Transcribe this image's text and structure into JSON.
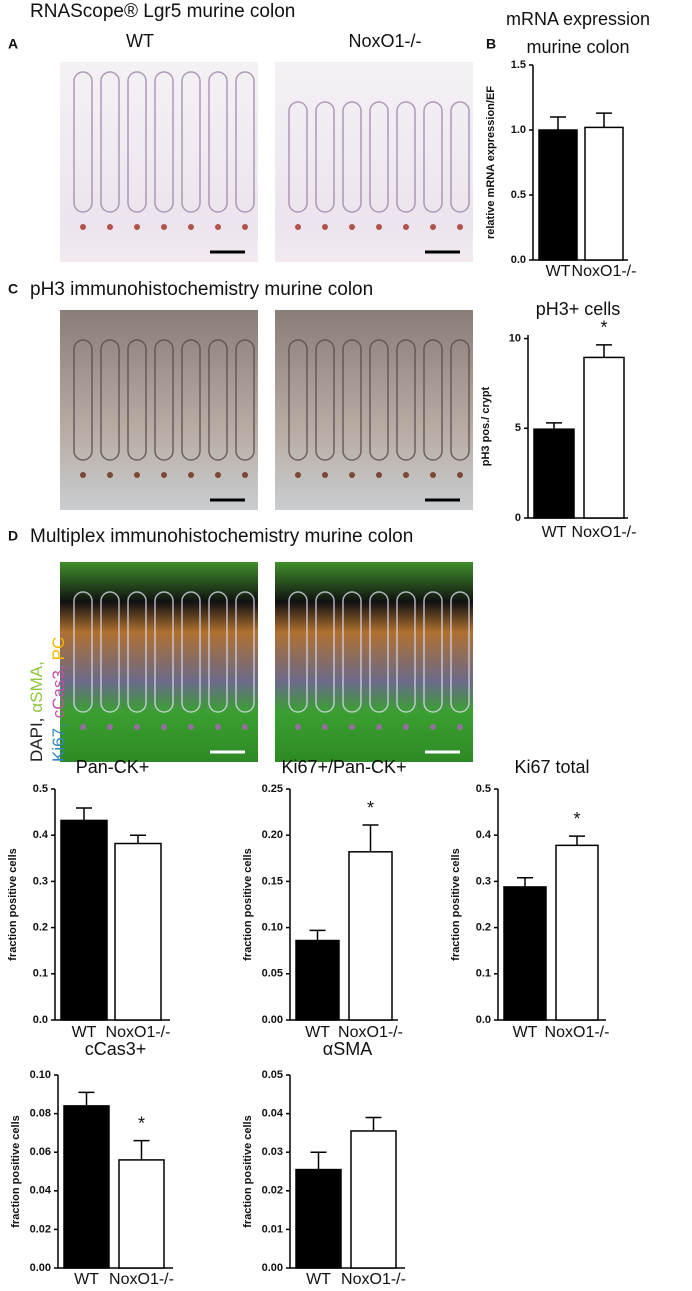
{
  "figure": {
    "panel_a": {
      "letter": "A",
      "title": "RNAScope® Lgr5 murine colon",
      "image_labels": [
        "WT",
        "NoxO1-/-"
      ]
    },
    "panel_b": {
      "letter": "B"
    },
    "panel_c": {
      "letter": "C",
      "title": "pH3 immunohistochemistry murine colon"
    },
    "panel_d": {
      "letter": "D",
      "title": "Multiplex immunohistochemistry murine colon",
      "stain_label": {
        "lines": [
          [
            {
              "text": "DAPI,",
              "color": "#222222"
            },
            {
              "text": "αSMA,",
              "color": "#8cc63f"
            }
          ],
          [
            {
              "text": "Ki67,",
              "color": "#2e86c1"
            },
            {
              "text": "cCas3,",
              "color": "#c050a0"
            },
            {
              "text": "PC",
              "color": "#f5b800"
            }
          ]
        ]
      }
    }
  },
  "chart_data": [
    {
      "type": "bar",
      "title": "mRNA expression",
      "subtitle": "murine colon",
      "ylabel": "relative mRNA expression/EF",
      "categories": [
        "WT",
        "NoxO1-/-"
      ],
      "values": [
        1.0,
        1.02
      ],
      "errors": [
        0.1,
        0.11
      ],
      "colors": [
        "#000000",
        "#ffffff"
      ],
      "ylim": [
        0,
        1.5
      ],
      "yticks": [
        {
          "value": 0,
          "label": "0.0"
        },
        {
          "value": 0.5,
          "label": "0.5"
        },
        {
          "value": 1,
          "label": "1.0"
        },
        {
          "value": 1.5,
          "label": "1.5"
        }
      ]
    },
    {
      "type": "bar",
      "title": "pH3+ cells",
      "ylabel": "pH3 pos./ crypt",
      "categories": [
        "WT",
        "NoxO1-/-"
      ],
      "values": [
        4.95,
        8.95
      ],
      "errors": [
        0.35,
        0.7
      ],
      "colors": [
        "#000000",
        "#ffffff"
      ],
      "ylim": [
        0,
        10.2
      ],
      "yticks": [
        0,
        5,
        10
      ],
      "annotations": [
        {
          "at": 1,
          "text": "*"
        }
      ]
    },
    {
      "type": "bar",
      "title": "Pan-CK+",
      "ylabel": "fraction positive cells",
      "categories": [
        "WT",
        "NoxO1-/-"
      ],
      "values": [
        0.432,
        0.382
      ],
      "errors": [
        0.027,
        0.018
      ],
      "colors": [
        "#000000",
        "#ffffff"
      ],
      "ylim": [
        0,
        0.5
      ],
      "yticks": [
        {
          "value": 0,
          "label": "0.0"
        },
        0.1,
        0.2,
        0.3,
        0.4,
        0.5
      ]
    },
    {
      "type": "bar",
      "title": "Ki67+/Pan-CK+",
      "ylabel": "fraction positive cells",
      "categories": [
        "WT",
        "NoxO1-/-"
      ],
      "values": [
        0.086,
        0.182
      ],
      "errors": [
        0.011,
        0.029
      ],
      "colors": [
        "#000000",
        "#ffffff"
      ],
      "ylim": [
        0,
        0.25
      ],
      "yticks": [
        {
          "value": 0,
          "label": "0.00"
        },
        0.05,
        {
          "value": 0.1,
          "label": "0.10"
        },
        0.15,
        {
          "value": 0.2,
          "label": "0.20"
        },
        0.25
      ],
      "annotations": [
        {
          "at": 1,
          "text": "*"
        }
      ]
    },
    {
      "type": "bar",
      "title": "Ki67 total",
      "ylabel": "fraction positive cells",
      "categories": [
        "WT",
        "NoxO1-/-"
      ],
      "values": [
        0.288,
        0.378
      ],
      "errors": [
        0.02,
        0.02
      ],
      "colors": [
        "#000000",
        "#ffffff"
      ],
      "ylim": [
        0,
        0.5
      ],
      "yticks": [
        {
          "value": 0,
          "label": "0.0"
        },
        0.1,
        0.2,
        0.3,
        0.4,
        0.5
      ],
      "annotations": [
        {
          "at": 1,
          "text": "*"
        }
      ]
    },
    {
      "type": "bar",
      "title": "cCas3+",
      "ylabel": "fraction positive cells",
      "categories": [
        "WT",
        "NoxO1-/-"
      ],
      "values": [
        0.084,
        0.056
      ],
      "errors": [
        0.007,
        0.01
      ],
      "colors": [
        "#000000",
        "#ffffff"
      ],
      "ylim": [
        0,
        0.1
      ],
      "yticks": [
        {
          "value": 0,
          "label": "0.00"
        },
        0.02,
        0.04,
        0.06,
        0.08,
        {
          "value": 0.1,
          "label": "0.10"
        }
      ],
      "annotations": [
        {
          "at": 1,
          "text": "*"
        }
      ]
    },
    {
      "type": "bar",
      "title": "αSMA",
      "ylabel": "fraction positive cells",
      "categories": [
        "WT",
        "NoxO1-/-"
      ],
      "values": [
        0.0255,
        0.0355
      ],
      "errors": [
        0.0045,
        0.0035
      ],
      "colors": [
        "#000000",
        "#ffffff"
      ],
      "ylim": [
        0,
        0.05
      ],
      "yticks": [
        {
          "value": 0,
          "label": "0.00"
        },
        0.01,
        0.02,
        0.03,
        0.04,
        0.05
      ]
    }
  ]
}
